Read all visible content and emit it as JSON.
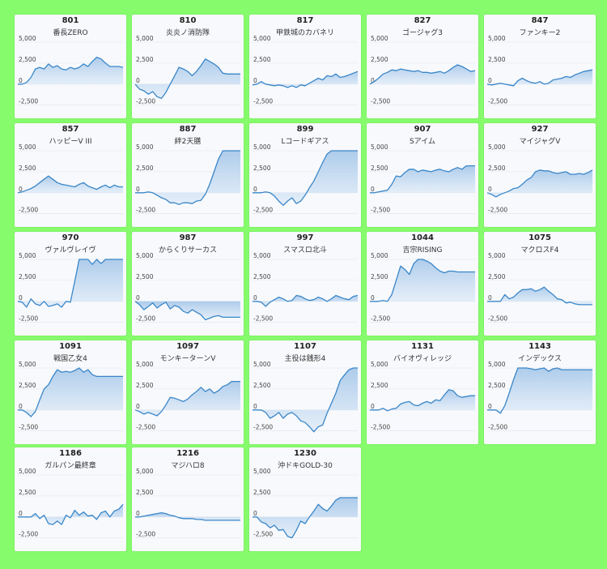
{
  "colors": {
    "background": "#86fb6c",
    "card": "#f7f9fc",
    "line": "#3a86c8",
    "fill_top": "#a9c9ea",
    "fill_bottom": "#dce9f7",
    "grid": "#dfe5ec"
  },
  "chart_data": [
    {
      "type": "area",
      "number": "801",
      "title": "番長ZERO",
      "ylim": [
        -3500,
        5000
      ],
      "yticks": [
        "5,000",
        "2,500",
        "0",
        "-2,500"
      ],
      "values": [
        0,
        0,
        200,
        800,
        1800,
        2000,
        1800,
        2400,
        2000,
        2200,
        1800,
        1700,
        2000,
        1800,
        2000,
        2400,
        2100,
        2700,
        3200,
        3000,
        2500,
        2100,
        2100,
        2100,
        2000
      ]
    },
    {
      "type": "area",
      "number": "810",
      "title": "炎炎ノ消防隊",
      "ylim": [
        -3500,
        5000
      ],
      "yticks": [
        "5,000",
        "2,500",
        "0",
        "-2,500"
      ],
      "values": [
        0,
        -600,
        -800,
        -1200,
        -900,
        -1500,
        -1700,
        -1000,
        0,
        1000,
        2000,
        1800,
        1500,
        1000,
        1500,
        2200,
        3000,
        2700,
        2400,
        2000,
        1300,
        1200,
        1200,
        1200,
        1200
      ]
    },
    {
      "type": "area",
      "number": "817",
      "title": "甲鉄城のカバネリ",
      "ylim": [
        -3500,
        5000
      ],
      "yticks": [
        "5,000",
        "2,500",
        "0",
        "-2,500"
      ],
      "values": [
        -100,
        0,
        300,
        0,
        -100,
        -200,
        -100,
        -200,
        -400,
        -200,
        -400,
        -100,
        -200,
        100,
        400,
        700,
        500,
        1000,
        900,
        1200,
        800,
        900,
        1100,
        1300,
        1500
      ]
    },
    {
      "type": "area",
      "number": "827",
      "title": "ゴージャグ3",
      "ylim": [
        -3500,
        5000
      ],
      "yticks": [
        "5,000",
        "2,500",
        "0",
        "-2,500"
      ],
      "values": [
        0,
        300,
        700,
        1200,
        1400,
        1700,
        1600,
        1800,
        1700,
        1600,
        1500,
        1600,
        1400,
        1400,
        1300,
        1400,
        1500,
        1300,
        1600,
        2000,
        2300,
        2100,
        1800,
        1500,
        1600
      ]
    },
    {
      "type": "area",
      "number": "847",
      "title": "ファンキー2",
      "ylim": [
        -3500,
        5000
      ],
      "yticks": [
        "5,000",
        "2,500",
        "0",
        "-2,500"
      ],
      "values": [
        0,
        -100,
        0,
        100,
        0,
        -100,
        -200,
        400,
        700,
        400,
        200,
        100,
        300,
        0,
        100,
        500,
        600,
        700,
        900,
        800,
        1100,
        1300,
        1500,
        1600,
        1700
      ]
    },
    {
      "type": "area",
      "number": "857",
      "title": "ハッピーV III",
      "ylim": [
        -3500,
        5000
      ],
      "yticks": [
        "5,000",
        "2,500",
        "0",
        "-2,500"
      ],
      "values": [
        0,
        100,
        300,
        500,
        800,
        1200,
        1600,
        2000,
        1600,
        1200,
        1000,
        900,
        800,
        700,
        1000,
        1200,
        800,
        600,
        400,
        700,
        900,
        600,
        900,
        700,
        700
      ]
    },
    {
      "type": "area",
      "number": "887",
      "title": "絆2天膳",
      "ylim": [
        -3500,
        5000
      ],
      "yticks": [
        "5,000",
        "2,500",
        "0",
        "-2,500"
      ],
      "values": [
        0,
        0,
        0,
        100,
        0,
        -300,
        -600,
        -800,
        -1200,
        -1200,
        -1400,
        -1200,
        -1200,
        -1300,
        -1000,
        -900,
        -200,
        1000,
        2500,
        4000,
        5000,
        5000,
        5000,
        5000,
        5000
      ]
    },
    {
      "type": "area",
      "number": "899",
      "title": "Lコードギアス",
      "ylim": [
        -3500,
        5000
      ],
      "yticks": [
        "5,000",
        "2,500",
        "0",
        "-2,500"
      ],
      "values": [
        0,
        0,
        0,
        100,
        0,
        -400,
        -1000,
        -1500,
        -1000,
        -600,
        -1300,
        -1000,
        -300,
        600,
        1400,
        2500,
        3600,
        4600,
        5000,
        5000,
        5000,
        5000,
        5000,
        5000,
        5000
      ]
    },
    {
      "type": "area",
      "number": "907",
      "title": "Sアイム",
      "ylim": [
        -3500,
        5000
      ],
      "yticks": [
        "5,000",
        "2,500",
        "0",
        "-2,500"
      ],
      "values": [
        0,
        0,
        100,
        200,
        300,
        1000,
        2000,
        1900,
        2400,
        2800,
        2800,
        2500,
        2700,
        2600,
        2500,
        2700,
        2800,
        2600,
        2500,
        2800,
        3000,
        2800,
        3200,
        3200,
        3200
      ]
    },
    {
      "type": "area",
      "number": "927",
      "title": "マイジャグV",
      "ylim": [
        -3500,
        5000
      ],
      "yticks": [
        "5,000",
        "2,500",
        "0",
        "-2,500"
      ],
      "values": [
        0,
        -200,
        -500,
        -200,
        0,
        200,
        500,
        600,
        1000,
        1500,
        1800,
        2500,
        2700,
        2600,
        2600,
        2400,
        2300,
        2400,
        2500,
        2200,
        2200,
        2300,
        2200,
        2400,
        2700
      ]
    },
    {
      "type": "area",
      "number": "970",
      "title": "ヴァルヴレイヴ",
      "ylim": [
        -3500,
        5000
      ],
      "yticks": [
        "5,000",
        "2,500",
        "0",
        "-2,500"
      ],
      "values": [
        0,
        -100,
        -700,
        300,
        -300,
        -500,
        0,
        -600,
        -500,
        -300,
        -700,
        0,
        -100,
        2400,
        5000,
        5000,
        5000,
        4400,
        5000,
        4500,
        5000,
        5000,
        5000,
        5000,
        5000
      ]
    },
    {
      "type": "area",
      "number": "987",
      "title": "からくりサーカス",
      "ylim": [
        -3500,
        5000
      ],
      "yticks": [
        "5,000",
        "2,500",
        "0",
        "-2,500"
      ],
      "values": [
        0,
        -400,
        -1000,
        -600,
        -200,
        -800,
        -400,
        -100,
        -900,
        -500,
        -700,
        -1200,
        -1400,
        -1000,
        -1300,
        -1600,
        -2200,
        -2000,
        -1800,
        -1700,
        -1900,
        -1900,
        -1900,
        -1900,
        -1900
      ]
    },
    {
      "type": "area",
      "number": "997",
      "title": "スマスロ北斗",
      "ylim": [
        -3500,
        5000
      ],
      "yticks": [
        "5,000",
        "2,500",
        "0",
        "-2,500"
      ],
      "values": [
        0,
        0,
        -100,
        -600,
        -100,
        200,
        500,
        300,
        0,
        100,
        700,
        600,
        300,
        100,
        200,
        500,
        300,
        0,
        300,
        700,
        500,
        300,
        200,
        600,
        700
      ]
    },
    {
      "type": "area",
      "number": "1044",
      "title": "吉宗RISING",
      "ylim": [
        -3500,
        5000
      ],
      "yticks": [
        "5,000",
        "2,500",
        "0",
        "-2,500"
      ],
      "values": [
        0,
        0,
        0,
        100,
        0,
        800,
        2500,
        4200,
        3800,
        3200,
        4500,
        5000,
        5000,
        4800,
        4500,
        4000,
        3600,
        3400,
        3600,
        3600,
        3500,
        3500,
        3500,
        3500,
        3500
      ]
    },
    {
      "type": "area",
      "number": "1075",
      "title": "マクロスF4",
      "ylim": [
        -3500,
        5000
      ],
      "yticks": [
        "5,000",
        "2,500",
        "0",
        "-2,500"
      ],
      "values": [
        0,
        0,
        0,
        0,
        800,
        300,
        500,
        1000,
        1400,
        1400,
        1500,
        1200,
        1400,
        1700,
        1200,
        800,
        300,
        200,
        -200,
        -100,
        -300,
        -400,
        -400,
        -400,
        -400
      ]
    },
    {
      "type": "area",
      "number": "1091",
      "title": "戦国乙女4",
      "ylim": [
        -3500,
        5000
      ],
      "yticks": [
        "5,000",
        "2,500",
        "0",
        "-2,500"
      ],
      "values": [
        0,
        0,
        -300,
        -800,
        -200,
        1200,
        2500,
        3000,
        4000,
        4800,
        4500,
        4600,
        4500,
        4700,
        5000,
        4500,
        4800,
        4200,
        4000,
        4000,
        4000,
        4000,
        4000,
        4000,
        4000
      ]
    },
    {
      "type": "area",
      "number": "1097",
      "title": "モンキーターンV",
      "ylim": [
        -3500,
        5000
      ],
      "yticks": [
        "5,000",
        "2,500",
        "0",
        "-2,500"
      ],
      "values": [
        0,
        -200,
        -500,
        -300,
        -500,
        -700,
        -200,
        600,
        1500,
        1400,
        1200,
        1000,
        1300,
        1800,
        2200,
        2700,
        2200,
        2500,
        2000,
        2300,
        2800,
        3000,
        3400,
        3400,
        3400
      ]
    },
    {
      "type": "area",
      "number": "1107",
      "title": "主役は銭形4",
      "ylim": [
        -3500,
        5000
      ],
      "yticks": [
        "5,000",
        "2,500",
        "0",
        "-2,500"
      ],
      "values": [
        0,
        0,
        0,
        -300,
        -1000,
        -700,
        -300,
        -1000,
        -500,
        -300,
        -700,
        -1300,
        -1500,
        -2000,
        -2600,
        -2000,
        -1800,
        -400,
        800,
        2000,
        3500,
        4200,
        4800,
        5000,
        5000
      ]
    },
    {
      "type": "area",
      "number": "1131",
      "title": "バイオヴィレッジ",
      "ylim": [
        -3500,
        5000
      ],
      "yticks": [
        "5,000",
        "2,500",
        "0",
        "-2,500"
      ],
      "values": [
        0,
        0,
        0,
        200,
        -100,
        100,
        200,
        700,
        900,
        1000,
        600,
        500,
        800,
        1000,
        800,
        1200,
        1100,
        1800,
        2400,
        2300,
        1700,
        1500,
        1600,
        1700,
        1700
      ]
    },
    {
      "type": "area",
      "number": "1143",
      "title": "インデックス",
      "ylim": [
        -3500,
        5000
      ],
      "yticks": [
        "5,000",
        "2,500",
        "0",
        "-2,500"
      ],
      "values": [
        0,
        0,
        0,
        -400,
        500,
        2000,
        3600,
        5000,
        5000,
        5000,
        4900,
        4800,
        4900,
        5000,
        4600,
        4900,
        5000,
        4800,
        4800,
        4800,
        4800,
        4800,
        4800,
        4800,
        4800
      ]
    },
    {
      "type": "area",
      "number": "1186",
      "title": "ガルパン最終章",
      "ylim": [
        -3500,
        5000
      ],
      "yticks": [
        "5,000",
        "2,500",
        "0",
        "-2,500"
      ],
      "values": [
        0,
        0,
        0,
        0,
        400,
        -200,
        200,
        -800,
        -900,
        -500,
        -900,
        200,
        -100,
        800,
        200,
        600,
        100,
        200,
        -300,
        500,
        700,
        0,
        700,
        900,
        1500
      ]
    },
    {
      "type": "area",
      "number": "1216",
      "title": "マジハロ8",
      "ylim": [
        -3500,
        5000
      ],
      "yticks": [
        "5,000",
        "2,500",
        "0",
        "-2,500"
      ],
      "values": [
        0,
        0,
        100,
        200,
        300,
        400,
        500,
        400,
        200,
        100,
        -100,
        -200,
        -200,
        -200,
        -300,
        -300,
        -400,
        -400,
        -400,
        -400,
        -400,
        -400,
        -400,
        -400,
        -400
      ]
    },
    {
      "type": "area",
      "number": "1230",
      "title": "沖ドキGOLD-30",
      "ylim": [
        -3500,
        5000
      ],
      "yticks": [
        "5,000",
        "2,500",
        "0",
        "-2,500"
      ],
      "values": [
        0,
        0,
        -600,
        -800,
        -1300,
        -1000,
        -1600,
        -1500,
        -2300,
        -2500,
        -1600,
        -500,
        -800,
        0,
        700,
        1500,
        1000,
        700,
        1300,
        2000,
        2300,
        2300,
        2300,
        2300,
        2300
      ]
    }
  ]
}
